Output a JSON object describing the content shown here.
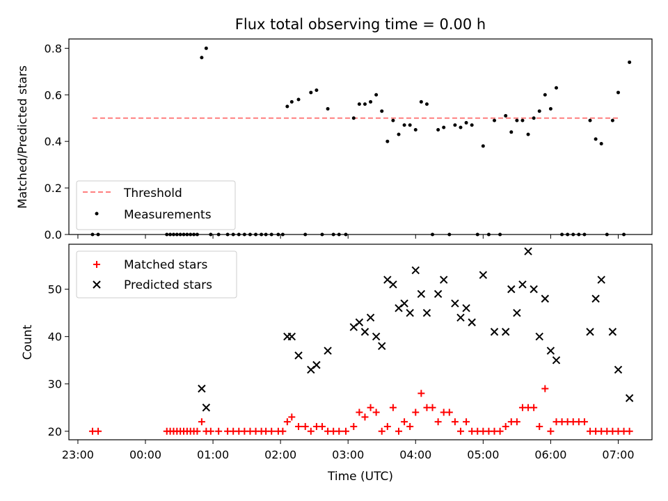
{
  "chart_data": [
    {
      "type": "scatter",
      "title": "Flux total observing time = 0.00 h",
      "ylabel": "Matched/Predicted stars",
      "ylim": [
        0,
        0.84
      ],
      "yticks": [
        0.0,
        0.2,
        0.4,
        0.6,
        0.8
      ],
      "ytick_labels": [
        "0.0",
        "0.2",
        "0.4",
        "0.6",
        "0.8"
      ],
      "grid": false,
      "legend_position": "lower-left",
      "threshold": {
        "name": "Threshold",
        "value": 0.5,
        "x_range": [
          "23:13",
          "07:00"
        ],
        "color": "#ff7f7f"
      },
      "series": [
        {
          "name": "Measurements",
          "color": "#000000",
          "points": [
            [
              "23:13",
              0
            ],
            [
              "23:18",
              0
            ],
            [
              "00:19",
              0
            ],
            [
              "00:22",
              0
            ],
            [
              "00:25",
              0
            ],
            [
              "00:28",
              0
            ],
            [
              "00:31",
              0
            ],
            [
              "00:34",
              0
            ],
            [
              "00:37",
              0
            ],
            [
              "00:40",
              0
            ],
            [
              "00:43",
              0
            ],
            [
              "00:46",
              0
            ],
            [
              "00:50",
              0.76
            ],
            [
              "00:54",
              0.8
            ],
            [
              "00:58",
              0
            ],
            [
              "01:05",
              0
            ],
            [
              "01:13",
              0
            ],
            [
              "01:18",
              0
            ],
            [
              "01:23",
              0
            ],
            [
              "01:28",
              0
            ],
            [
              "01:33",
              0
            ],
            [
              "01:38",
              0
            ],
            [
              "01:43",
              0
            ],
            [
              "01:47",
              0
            ],
            [
              "01:52",
              0
            ],
            [
              "01:58",
              0
            ],
            [
              "02:02",
              0
            ],
            [
              "02:06",
              0.55
            ],
            [
              "02:10",
              0.57
            ],
            [
              "02:16",
              0.58
            ],
            [
              "02:22",
              0
            ],
            [
              "02:27",
              0.61
            ],
            [
              "02:32",
              0.62
            ],
            [
              "02:37",
              0
            ],
            [
              "02:42",
              0.54
            ],
            [
              "02:47",
              0
            ],
            [
              "02:52",
              0
            ],
            [
              "02:58",
              0
            ],
            [
              "03:05",
              0.5
            ],
            [
              "03:10",
              0.56
            ],
            [
              "03:15",
              0.56
            ],
            [
              "03:20",
              0.57
            ],
            [
              "03:25",
              0.6
            ],
            [
              "03:30",
              0.53
            ],
            [
              "03:35",
              0.4
            ],
            [
              "03:40",
              0.49
            ],
            [
              "03:45",
              0.43
            ],
            [
              "03:50",
              0.47
            ],
            [
              "03:55",
              0.47
            ],
            [
              "04:00",
              0.45
            ],
            [
              "04:05",
              0.57
            ],
            [
              "04:10",
              0.56
            ],
            [
              "04:15",
              0
            ],
            [
              "04:20",
              0.45
            ],
            [
              "04:25",
              0.46
            ],
            [
              "04:30",
              0
            ],
            [
              "04:35",
              0.47
            ],
            [
              "04:40",
              0.46
            ],
            [
              "04:45",
              0.48
            ],
            [
              "04:50",
              0.47
            ],
            [
              "04:55",
              0
            ],
            [
              "05:00",
              0.38
            ],
            [
              "05:05",
              0
            ],
            [
              "05:10",
              0.49
            ],
            [
              "05:15",
              0
            ],
            [
              "05:20",
              0.51
            ],
            [
              "05:25",
              0.44
            ],
            [
              "05:30",
              0.49
            ],
            [
              "05:35",
              0.49
            ],
            [
              "05:40",
              0.43
            ],
            [
              "05:45",
              0.5
            ],
            [
              "05:50",
              0.53
            ],
            [
              "05:55",
              0.6
            ],
            [
              "06:00",
              0.54
            ],
            [
              "06:05",
              0.63
            ],
            [
              "06:10",
              0
            ],
            [
              "06:15",
              0
            ],
            [
              "06:20",
              0
            ],
            [
              "06:25",
              0
            ],
            [
              "06:30",
              0
            ],
            [
              "06:35",
              0.49
            ],
            [
              "06:40",
              0.41
            ],
            [
              "06:45",
              0.39
            ],
            [
              "06:50",
              0
            ],
            [
              "06:55",
              0.49
            ],
            [
              "07:00",
              0.61
            ],
            [
              "07:05",
              0
            ],
            [
              "07:10",
              0.74
            ]
          ]
        }
      ]
    },
    {
      "type": "scatter",
      "title": "",
      "xlabel": "Time (UTC)",
      "ylabel": "Count",
      "xlim": [
        "22:52",
        "07:30"
      ],
      "xticks": [
        "23:00",
        "00:00",
        "01:00",
        "02:00",
        "03:00",
        "04:00",
        "05:00",
        "06:00",
        "07:00"
      ],
      "ylim": [
        18.2,
        59.5
      ],
      "yticks": [
        20,
        30,
        40,
        50
      ],
      "grid": false,
      "legend_position": "top-left",
      "series": [
        {
          "name": "Matched stars",
          "marker": "plus",
          "color": "#ff0000",
          "points": [
            [
              "23:13",
              20
            ],
            [
              "23:18",
              20
            ],
            [
              "00:19",
              20
            ],
            [
              "00:22",
              20
            ],
            [
              "00:25",
              20
            ],
            [
              "00:28",
              20
            ],
            [
              "00:31",
              20
            ],
            [
              "00:34",
              20
            ],
            [
              "00:37",
              20
            ],
            [
              "00:40",
              20
            ],
            [
              "00:43",
              20
            ],
            [
              "00:46",
              20
            ],
            [
              "00:50",
              22
            ],
            [
              "00:54",
              20
            ],
            [
              "00:58",
              20
            ],
            [
              "01:05",
              20
            ],
            [
              "01:13",
              20
            ],
            [
              "01:18",
              20
            ],
            [
              "01:23",
              20
            ],
            [
              "01:28",
              20
            ],
            [
              "01:33",
              20
            ],
            [
              "01:38",
              20
            ],
            [
              "01:43",
              20
            ],
            [
              "01:47",
              20
            ],
            [
              "01:52",
              20
            ],
            [
              "01:58",
              20
            ],
            [
              "02:02",
              20
            ],
            [
              "02:06",
              22
            ],
            [
              "02:10",
              23
            ],
            [
              "02:16",
              21
            ],
            [
              "02:22",
              21
            ],
            [
              "02:27",
              20
            ],
            [
              "02:32",
              21
            ],
            [
              "02:37",
              21
            ],
            [
              "02:42",
              20
            ],
            [
              "02:47",
              20
            ],
            [
              "02:52",
              20
            ],
            [
              "02:58",
              20
            ],
            [
              "03:05",
              21
            ],
            [
              "03:10",
              24
            ],
            [
              "03:15",
              23
            ],
            [
              "03:20",
              25
            ],
            [
              "03:25",
              24
            ],
            [
              "03:30",
              20
            ],
            [
              "03:35",
              21
            ],
            [
              "03:40",
              25
            ],
            [
              "03:45",
              20
            ],
            [
              "03:50",
              22
            ],
            [
              "03:55",
              21
            ],
            [
              "04:00",
              24
            ],
            [
              "04:05",
              28
            ],
            [
              "04:10",
              25
            ],
            [
              "04:15",
              25
            ],
            [
              "04:20",
              22
            ],
            [
              "04:25",
              24
            ],
            [
              "04:30",
              24
            ],
            [
              "04:35",
              22
            ],
            [
              "04:40",
              20
            ],
            [
              "04:45",
              22
            ],
            [
              "04:50",
              20
            ],
            [
              "04:55",
              20
            ],
            [
              "05:00",
              20
            ],
            [
              "05:05",
              20
            ],
            [
              "05:10",
              20
            ],
            [
              "05:15",
              20
            ],
            [
              "05:20",
              21
            ],
            [
              "05:25",
              22
            ],
            [
              "05:30",
              22
            ],
            [
              "05:35",
              25
            ],
            [
              "05:40",
              25
            ],
            [
              "05:45",
              25
            ],
            [
              "05:50",
              21
            ],
            [
              "05:55",
              29
            ],
            [
              "06:00",
              20
            ],
            [
              "06:05",
              22
            ],
            [
              "06:10",
              22
            ],
            [
              "06:15",
              22
            ],
            [
              "06:20",
              22
            ],
            [
              "06:25",
              22
            ],
            [
              "06:30",
              22
            ],
            [
              "06:35",
              20
            ],
            [
              "06:40",
              20
            ],
            [
              "06:45",
              20
            ],
            [
              "06:50",
              20
            ],
            [
              "06:55",
              20
            ],
            [
              "07:00",
              20
            ],
            [
              "07:05",
              20
            ],
            [
              "07:10",
              20
            ]
          ]
        },
        {
          "name": "Predicted stars",
          "marker": "x",
          "color": "#000000",
          "points": [
            [
              "00:50",
              29
            ],
            [
              "00:54",
              25
            ],
            [
              "02:06",
              40
            ],
            [
              "02:10",
              40
            ],
            [
              "02:16",
              36
            ],
            [
              "02:27",
              33
            ],
            [
              "02:32",
              34
            ],
            [
              "02:42",
              37
            ],
            [
              "03:05",
              42
            ],
            [
              "03:10",
              43
            ],
            [
              "03:15",
              41
            ],
            [
              "03:20",
              44
            ],
            [
              "03:25",
              40
            ],
            [
              "03:30",
              38
            ],
            [
              "03:35",
              52
            ],
            [
              "03:40",
              51
            ],
            [
              "03:45",
              46
            ],
            [
              "03:50",
              47
            ],
            [
              "03:55",
              45
            ],
            [
              "04:00",
              54
            ],
            [
              "04:05",
              49
            ],
            [
              "04:10",
              45
            ],
            [
              "04:20",
              49
            ],
            [
              "04:25",
              52
            ],
            [
              "04:35",
              47
            ],
            [
              "04:40",
              44
            ],
            [
              "04:45",
              46
            ],
            [
              "04:50",
              43
            ],
            [
              "05:00",
              53
            ],
            [
              "05:10",
              41
            ],
            [
              "05:20",
              41
            ],
            [
              "05:25",
              50
            ],
            [
              "05:30",
              45
            ],
            [
              "05:35",
              51
            ],
            [
              "05:40",
              58
            ],
            [
              "05:45",
              50
            ],
            [
              "05:50",
              40
            ],
            [
              "05:55",
              48
            ],
            [
              "06:00",
              37
            ],
            [
              "06:05",
              35
            ],
            [
              "06:35",
              41
            ],
            [
              "06:40",
              48
            ],
            [
              "06:45",
              52
            ],
            [
              "06:55",
              41
            ],
            [
              "07:00",
              33
            ],
            [
              "07:10",
              27
            ]
          ]
        }
      ]
    }
  ]
}
